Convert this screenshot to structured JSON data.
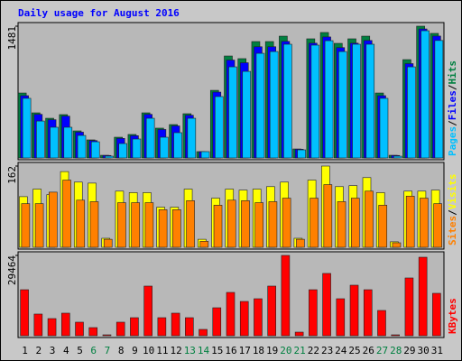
{
  "chart_data": [
    {
      "type": "bar",
      "title": "Daily usage for August 2016",
      "legend_separator": "/",
      "ylim": [
        0,
        1481
      ],
      "yticks": [
        1481
      ],
      "series": [
        {
          "name": "Hits",
          "color": "#008040",
          "values": [
            730,
            507,
            446,
            487,
            304,
            203,
            30,
            233,
            264,
            507,
            335,
            375,
            497,
            71,
            760,
            1146,
            1116,
            1308,
            1308,
            1369,
            101,
            1339,
            1410,
            1288,
            1339,
            1369,
            730,
            30,
            1105,
            1481,
            1400
          ]
        },
        {
          "name": "Files",
          "color": "#0000ff",
          "values": [
            700,
            490,
            430,
            470,
            290,
            195,
            28,
            220,
            250,
            490,
            320,
            360,
            480,
            70,
            740,
            1100,
            1070,
            1250,
            1250,
            1310,
            98,
            1290,
            1360,
            1240,
            1290,
            1320,
            700,
            28,
            1060,
            1450,
            1370
          ]
        },
        {
          "name": "Pages",
          "color": "#00c0ff",
          "values": [
            670,
            415,
            345,
            345,
            253,
            182,
            20,
            162,
            213,
            446,
            233,
            284,
            446,
            71,
            690,
            1024,
            973,
            1176,
            1196,
            1278,
            91,
            1268,
            1318,
            1196,
            1278,
            1278,
            670,
            20,
            1024,
            1430,
            1320
          ]
        }
      ]
    },
    {
      "type": "bar",
      "legend_separator": "/",
      "ylim": [
        0,
        162
      ],
      "yticks": [
        162
      ],
      "series": [
        {
          "name": "Visits",
          "color": "#ffff00",
          "values": [
            101,
            116,
            105,
            151,
            130,
            128,
            18,
            112,
            109,
            109,
            80,
            80,
            116,
            16,
            98,
            116,
            114,
            116,
            121,
            130,
            18,
            134,
            162,
            121,
            123,
            139,
            109,
            11,
            112,
            112,
            114
          ]
        },
        {
          "name": "Sites",
          "color": "#ff8000",
          "values": [
            87,
            87,
            110,
            134,
            94,
            91,
            16,
            89,
            89,
            89,
            75,
            75,
            93,
            12,
            84,
            94,
            93,
            89,
            91,
            98,
            16,
            98,
            125,
            91,
            98,
            112,
            84,
            9,
            102,
            98,
            87
          ]
        }
      ]
    },
    {
      "type": "bar",
      "ylim": [
        0,
        29464
      ],
      "yticks": [
        29464
      ],
      "categories": [
        "1",
        "2",
        "3",
        "4",
        "5",
        "6",
        "7",
        "8",
        "9",
        "10",
        "11",
        "12",
        "13",
        "14",
        "15",
        "16",
        "17",
        "18",
        "19",
        "20",
        "21",
        "22",
        "23",
        "24",
        "25",
        "26",
        "27",
        "28",
        "29",
        "30",
        "31"
      ],
      "x_label_colors": [
        "#000000",
        "#000000",
        "#000000",
        "#000000",
        "#000000",
        "#008040",
        "#008040",
        "#000000",
        "#000000",
        "#000000",
        "#000000",
        "#000000",
        "#008040",
        "#008040",
        "#000000",
        "#000000",
        "#000000",
        "#000000",
        "#000000",
        "#008040",
        "#008040",
        "#000000",
        "#000000",
        "#000000",
        "#000000",
        "#000000",
        "#008040",
        "#008040",
        "#000000",
        "#000000",
        "#000000"
      ],
      "series": [
        {
          "name": "KBytes",
          "color": "#ff0000",
          "values": [
            16880,
            7950,
            6290,
            8280,
            4970,
            2980,
            330,
            4970,
            6620,
            18210,
            6620,
            8280,
            6620,
            2320,
            10260,
            15890,
            12580,
            13570,
            18210,
            29464,
            1320,
            16880,
            22850,
            13570,
            18540,
            16880,
            9270,
            330,
            21190,
            28800,
            15560
          ]
        }
      ]
    }
  ]
}
